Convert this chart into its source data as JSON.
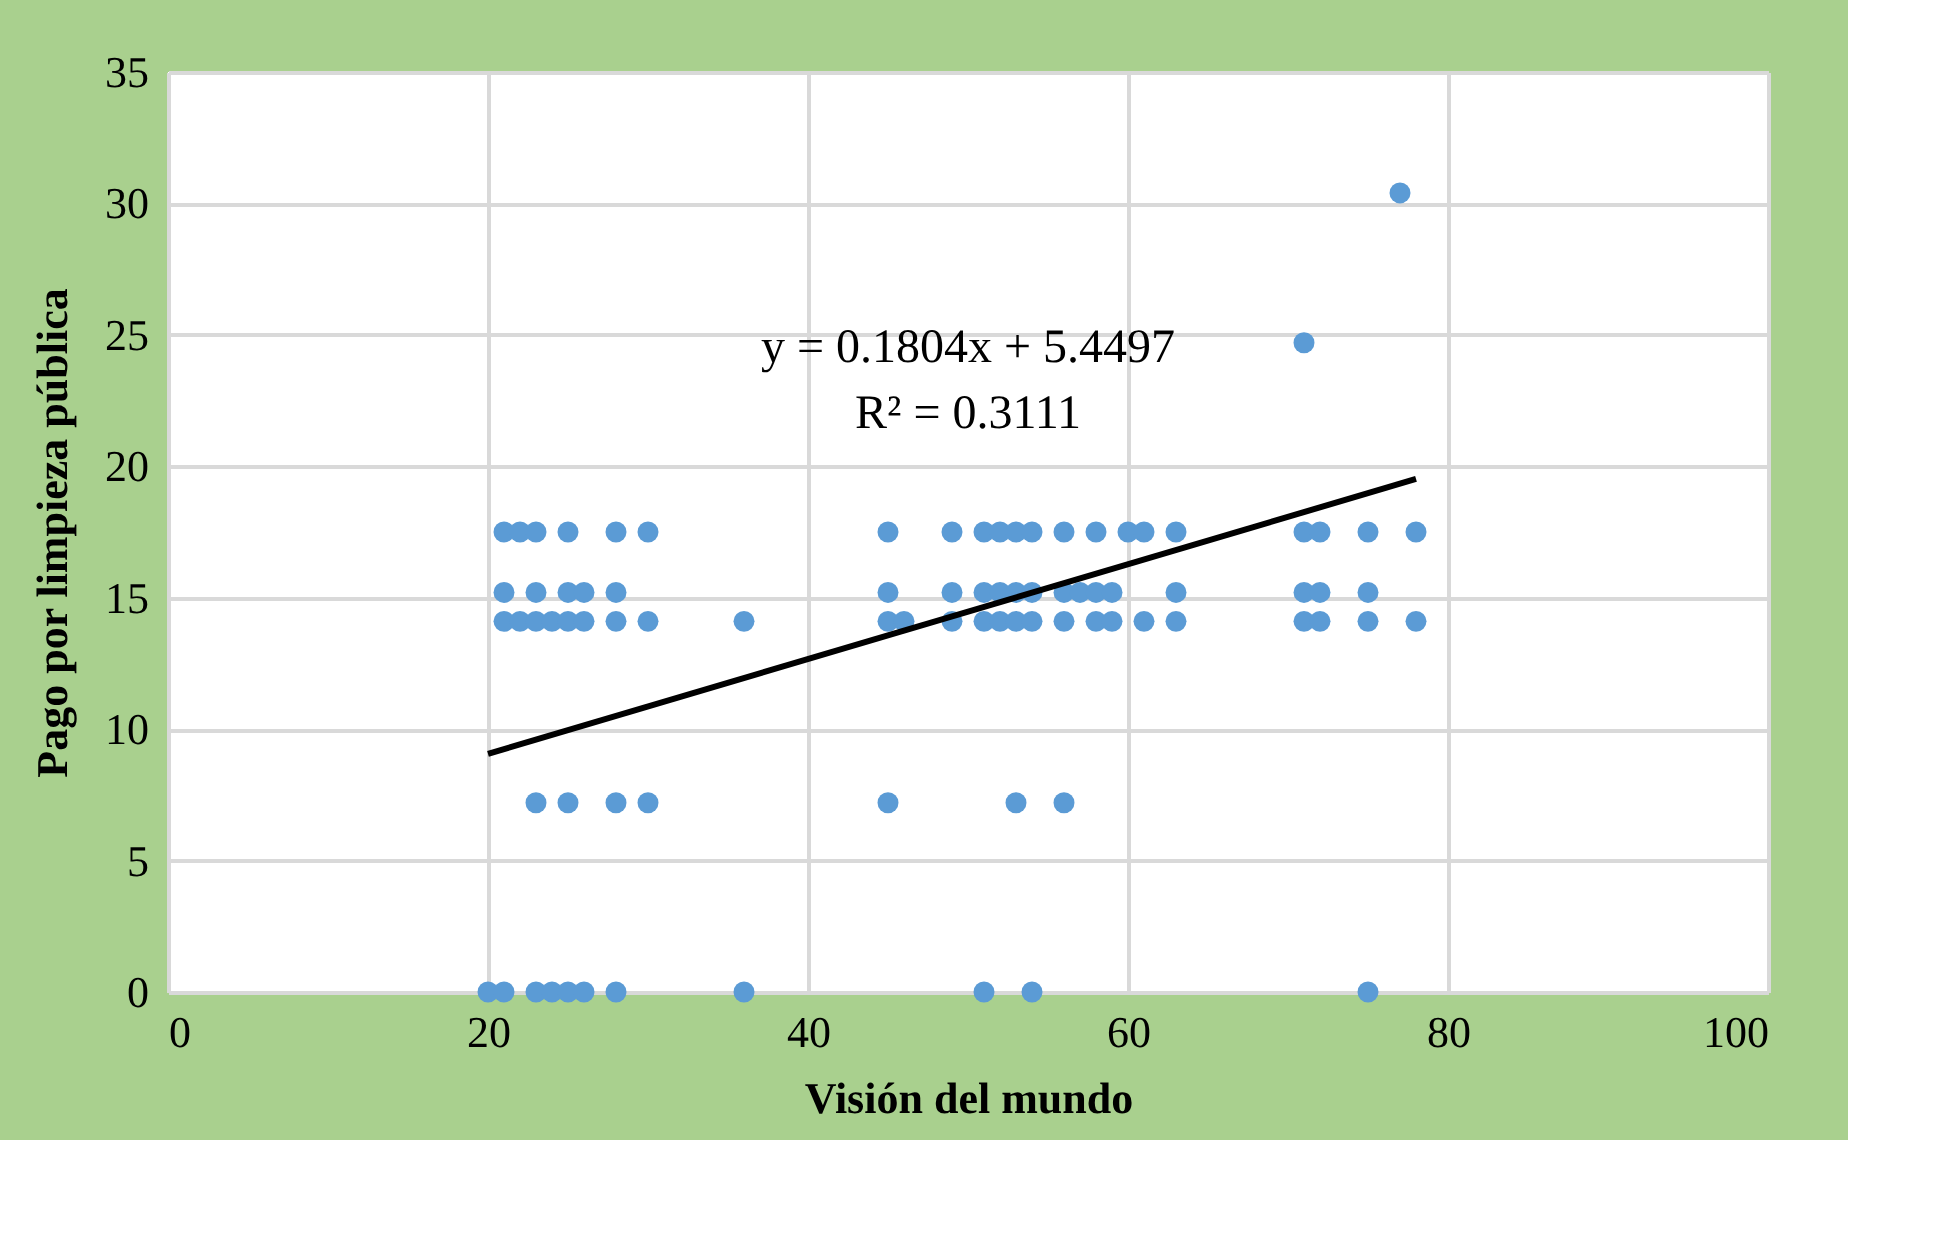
{
  "chart_data": {
    "type": "scatter",
    "xlabel": "Visión del mundo",
    "ylabel": "Pago por limpieza  pública",
    "xlim": [
      0,
      100
    ],
    "xticks": [
      0,
      20,
      40,
      60,
      80,
      100
    ],
    "ylim": [
      0,
      35
    ],
    "yticks": [
      0,
      5,
      10,
      15,
      20,
      25,
      30,
      35
    ],
    "grid": true,
    "annotations": [
      "y = 0.1804x + 5.4497",
      "R² = 0.3111"
    ],
    "series": [
      {
        "color": "#5b9bd5",
        "marker": "circle",
        "x": [
          21,
          22,
          23,
          25,
          28,
          30,
          45,
          49,
          51,
          52,
          53,
          54,
          56,
          58,
          60,
          61,
          63,
          71,
          72,
          75,
          78,
          71,
          77,
          21,
          23,
          25,
          26,
          28,
          45,
          49,
          51,
          52,
          53,
          54,
          56,
          57,
          58,
          59,
          63,
          71,
          72,
          75,
          21,
          22,
          23,
          24,
          25,
          26,
          28,
          30,
          36,
          45,
          46,
          49,
          51,
          52,
          53,
          54,
          56,
          58,
          59,
          61,
          63,
          71,
          72,
          75,
          78,
          23,
          25,
          28,
          30,
          45,
          53,
          56,
          20,
          21,
          23,
          24,
          25,
          26,
          28,
          36,
          51,
          54,
          75
        ],
        "values": [
          17.5,
          17.5,
          17.5,
          17.5,
          17.5,
          17.5,
          17.5,
          17.5,
          17.5,
          17.5,
          17.5,
          17.5,
          17.5,
          17.5,
          17.5,
          17.5,
          17.5,
          17.5,
          17.5,
          17.5,
          17.5,
          24.7,
          30.4,
          15.2,
          15.2,
          15.2,
          15.2,
          15.2,
          15.2,
          15.2,
          15.2,
          15.2,
          15.2,
          15.2,
          15.2,
          15.2,
          15.2,
          15.2,
          15.2,
          15.2,
          15.2,
          15.2,
          14.1,
          14.1,
          14.1,
          14.1,
          14.1,
          14.1,
          14.1,
          14.1,
          14.1,
          14.1,
          14.1,
          14.1,
          14.1,
          14.1,
          14.1,
          14.1,
          14.1,
          14.1,
          14.1,
          14.1,
          14.1,
          14.1,
          14.1,
          14.1,
          14.1,
          7.2,
          7.2,
          7.2,
          7.2,
          7.2,
          7.2,
          7.2,
          0,
          0,
          0,
          0,
          0,
          0,
          0,
          0,
          0,
          0,
          0
        ]
      },
      {
        "type": "line",
        "marker": "none",
        "color": "#000000",
        "x": [
          20,
          78
        ],
        "values": [
          9.06,
          19.52
        ]
      }
    ]
  }
}
